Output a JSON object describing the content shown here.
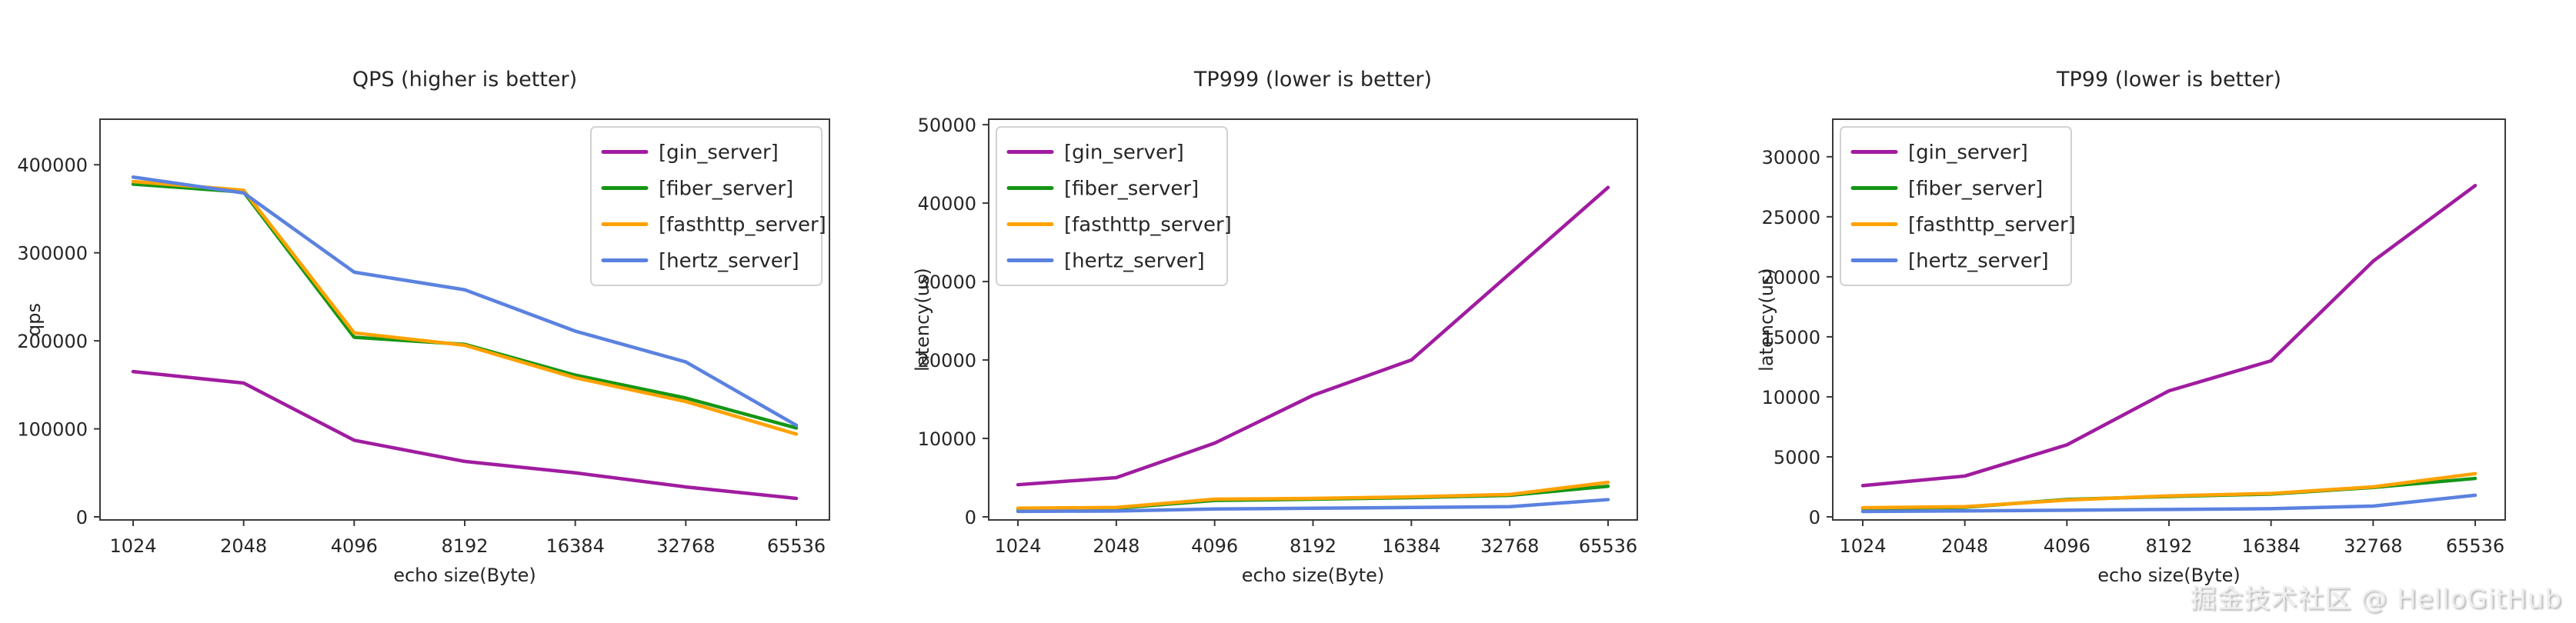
{
  "watermark": {
    "text": "掘金技术社区 @ HelloGitHub"
  },
  "chart_data": [
    {
      "id": "qps",
      "type": "line",
      "title": "QPS (higher is better)",
      "xlabel": "echo size(Byte)",
      "ylabel": "qps",
      "categories": [
        "1024",
        "2048",
        "4096",
        "8192",
        "16384",
        "32768",
        "65536"
      ],
      "yticks": [
        0,
        100000,
        200000,
        300000,
        400000
      ],
      "ylim": [
        0,
        450000
      ],
      "grid": false,
      "legend_position": "top-right",
      "series": [
        {
          "name": "[gin_server]",
          "color": "#a01ca0",
          "values": [
            165000,
            152000,
            87000,
            63000,
            50000,
            34000,
            21000
          ]
        },
        {
          "name": "[fiber_server]",
          "color": "#159615",
          "values": [
            378000,
            369000,
            204000,
            196000,
            161000,
            135000,
            101000
          ]
        },
        {
          "name": "[fasthttp_server]",
          "color": "#ffa200",
          "values": [
            381000,
            371000,
            209000,
            195000,
            158000,
            131000,
            94000
          ]
        },
        {
          "name": "[hertz_server]",
          "color": "#5b82e0",
          "values": [
            386000,
            368000,
            278000,
            258000,
            211000,
            176000,
            104000
          ]
        }
      ]
    },
    {
      "id": "tp999",
      "type": "line",
      "title": "TP999 (lower is better)",
      "xlabel": "echo size(Byte)",
      "ylabel": "latency(us)",
      "categories": [
        "1024",
        "2048",
        "4096",
        "8192",
        "16384",
        "32768",
        "65536"
      ],
      "yticks": [
        0,
        10000,
        20000,
        30000,
        40000,
        50000
      ],
      "ylim": [
        0,
        50500
      ],
      "grid": false,
      "legend_position": "top-left",
      "series": [
        {
          "name": "[gin_server]",
          "color": "#a01ca0",
          "values": [
            4100,
            5000,
            9400,
            15500,
            20000,
            31000,
            42000
          ]
        },
        {
          "name": "[fiber_server]",
          "color": "#159615",
          "values": [
            1000,
            1100,
            2100,
            2250,
            2450,
            2750,
            3900
          ]
        },
        {
          "name": "[fasthttp_server]",
          "color": "#ffa200",
          "values": [
            1100,
            1200,
            2250,
            2350,
            2550,
            2850,
            4400
          ]
        },
        {
          "name": "[hertz_server]",
          "color": "#5b82e0",
          "values": [
            700,
            750,
            1000,
            1100,
            1200,
            1300,
            2200
          ]
        }
      ]
    },
    {
      "id": "tp99",
      "type": "line",
      "title": "TP99 (lower is better)",
      "xlabel": "echo size(Byte)",
      "ylabel": "latency(us)",
      "categories": [
        "1024",
        "2048",
        "4096",
        "8192",
        "16384",
        "32768",
        "65536"
      ],
      "yticks": [
        0,
        5000,
        10000,
        15000,
        20000,
        25000,
        30000
      ],
      "ylim": [
        0,
        33000
      ],
      "grid": false,
      "legend_position": "top-left",
      "series": [
        {
          "name": "[gin_server]",
          "color": "#a01ca0",
          "values": [
            2600,
            3400,
            6000,
            10500,
            13000,
            21300,
            27600
          ]
        },
        {
          "name": "[fiber_server]",
          "color": "#159615",
          "values": [
            700,
            800,
            1450,
            1700,
            1900,
            2450,
            3200
          ]
        },
        {
          "name": "[fasthttp_server]",
          "color": "#ffa200",
          "values": [
            760,
            850,
            1400,
            1750,
            1950,
            2500,
            3600
          ]
        },
        {
          "name": "[hertz_server]",
          "color": "#5b82e0",
          "values": [
            450,
            500,
            550,
            620,
            680,
            900,
            1800
          ]
        }
      ]
    }
  ]
}
